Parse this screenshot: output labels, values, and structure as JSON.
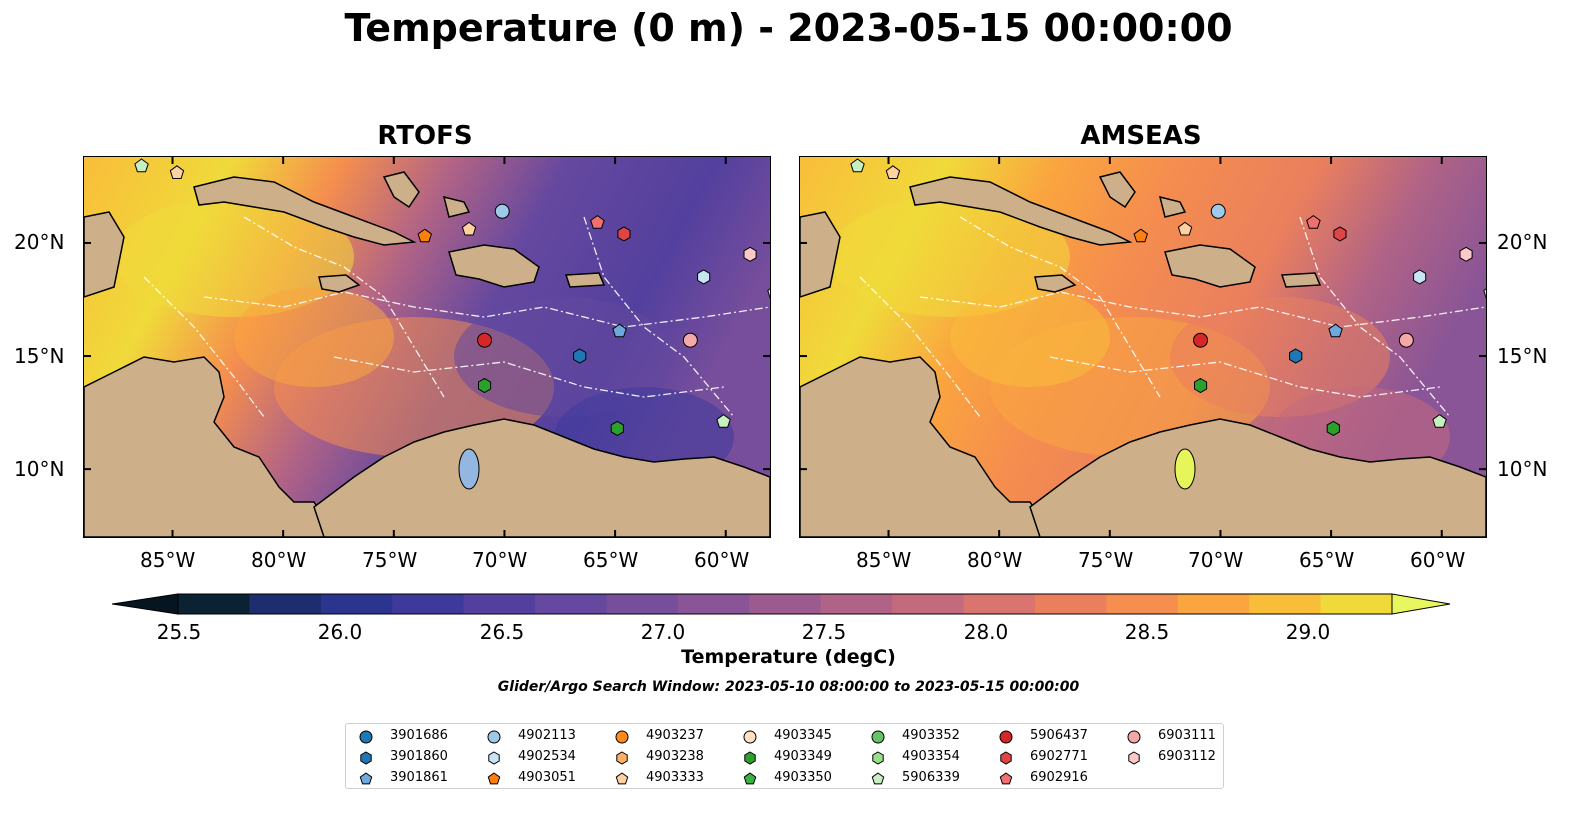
{
  "title": "Temperature (0 m) - 2023-05-15 00:00:00",
  "panels": [
    {
      "title": "RTOFS",
      "model": "rtofs"
    },
    {
      "title": "AMSEAS",
      "model": "amseas"
    }
  ],
  "lon_ticks": [
    "85°W",
    "80°W",
    "75°W",
    "70°W",
    "65°W",
    "60°W"
  ],
  "lat_ticks": [
    "20°N",
    "15°N",
    "10°N"
  ],
  "colorbar": {
    "label": "Temperature (degC)",
    "min": 25.25,
    "max": 29.5,
    "step": 0.25,
    "extend": "both",
    "ticks": [
      "25.5",
      "26.0",
      "26.5",
      "27.0",
      "27.5",
      "28.0",
      "28.5",
      "29.0"
    ],
    "colors": [
      "#0b2233",
      "#1d2d6e",
      "#2b3590",
      "#3e3a9c",
      "#53409e",
      "#65489f",
      "#774e9c",
      "#8a5596",
      "#9c5b8f",
      "#b06386",
      "#c46a7d",
      "#d9746e",
      "#ea7f5e",
      "#f58e4e",
      "#faa53f",
      "#f9bd3a",
      "#f0da3a",
      "#e5f55a"
    ],
    "under_color": "#061520",
    "over_color": "#e9f75e"
  },
  "search_window_text": "Glider/Argo Search Window: 2023-05-10 08:00:00 to 2023-05-15 00:00:00",
  "land_color": "#cdb08a",
  "legend": [
    {
      "id": "3901686",
      "marker": "circle",
      "color": "#1f77b4"
    },
    {
      "id": "3901860",
      "marker": "hexagon",
      "color": "#1f77b4"
    },
    {
      "id": "3901861",
      "marker": "pentagon",
      "color": "#6fa8dc"
    },
    {
      "id": "4902113",
      "marker": "circle",
      "color": "#9ecae9"
    },
    {
      "id": "4902534",
      "marker": "hexagon",
      "color": "#c6e4f5"
    },
    {
      "id": "4903051",
      "marker": "pentagon",
      "color": "#ff7f0e"
    },
    {
      "id": "4903237",
      "marker": "circle",
      "color": "#ff8c1a"
    },
    {
      "id": "4903238",
      "marker": "hexagon",
      "color": "#ffb066"
    },
    {
      "id": "4903333",
      "marker": "pentagon",
      "color": "#ffd0a0"
    },
    {
      "id": "4903345",
      "marker": "circle",
      "color": "#fde0c5"
    },
    {
      "id": "4903349",
      "marker": "hexagon",
      "color": "#2ca02c"
    },
    {
      "id": "4903350",
      "marker": "pentagon",
      "color": "#3cb043"
    },
    {
      "id": "4903352",
      "marker": "circle",
      "color": "#66c266"
    },
    {
      "id": "4903354",
      "marker": "hexagon",
      "color": "#98df8a"
    },
    {
      "id": "5906339",
      "marker": "pentagon",
      "color": "#c7f0c0"
    },
    {
      "id": "5906437",
      "marker": "circle",
      "color": "#d62728"
    },
    {
      "id": "6902771",
      "marker": "hexagon",
      "color": "#e04545"
    },
    {
      "id": "6902916",
      "marker": "pentagon",
      "color": "#f07070"
    },
    {
      "id": "6903111",
      "marker": "circle",
      "color": "#f4a8a8"
    },
    {
      "id": "6903112",
      "marker": "hexagon",
      "color": "#fcc8c8"
    }
  ],
  "floats": [
    {
      "id": "5906339",
      "lon": -86.4,
      "lat": 23.4
    },
    {
      "id": "4903333",
      "lon": -84.8,
      "lat": 23.1
    },
    {
      "id": "4903051",
      "lon": -73.6,
      "lat": 20.3
    },
    {
      "id": "4903333",
      "lon": -71.6,
      "lat": 20.6
    },
    {
      "id": "4902113",
      "lon": -70.1,
      "lat": 21.4
    },
    {
      "id": "6902916",
      "lon": -65.8,
      "lat": 20.9
    },
    {
      "id": "6902771",
      "lon": -64.6,
      "lat": 20.4
    },
    {
      "id": "4902534",
      "lon": -61.0,
      "lat": 18.5
    },
    {
      "id": "6903112",
      "lon": -58.9,
      "lat": 19.5
    },
    {
      "id": "5906339",
      "lon": -57.8,
      "lat": 17.8
    },
    {
      "id": "5906437",
      "lon": -70.9,
      "lat": 15.7
    },
    {
      "id": "3901860",
      "lon": -66.6,
      "lat": 15.0
    },
    {
      "id": "3901861",
      "lon": -64.8,
      "lat": 16.1
    },
    {
      "id": "6903111",
      "lon": -61.6,
      "lat": 15.7
    },
    {
      "id": "4903349",
      "lon": -70.9,
      "lat": 13.7
    },
    {
      "id": "4903349",
      "lon": -64.9,
      "lat": 11.8
    },
    {
      "id": "5906339",
      "lon": -60.1,
      "lat": 12.1
    }
  ],
  "map_extent": {
    "lon_min": -89,
    "lon_max": -58,
    "lat_min": 7,
    "lat_max": 23.8
  }
}
